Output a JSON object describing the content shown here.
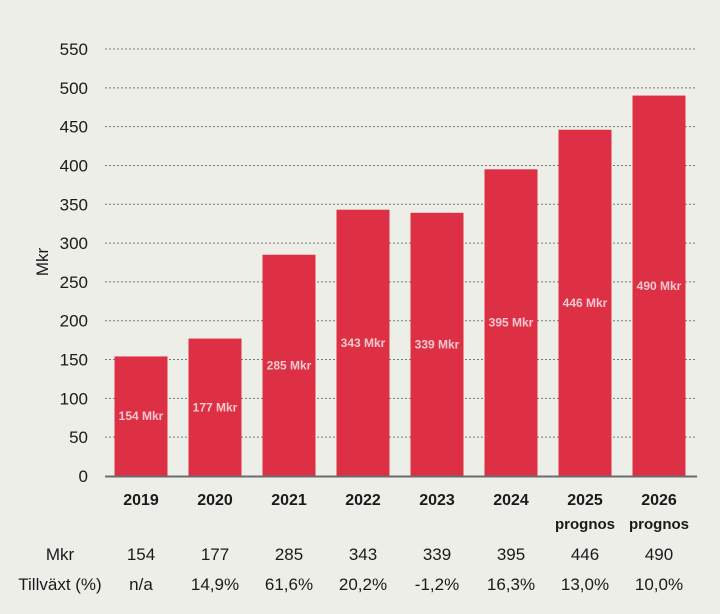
{
  "chart_data": {
    "type": "bar",
    "title": "",
    "xlabel": "",
    "ylabel": "Mkr",
    "ylim": [
      0,
      550
    ],
    "yticks": [
      0,
      50,
      100,
      150,
      200,
      250,
      300,
      350,
      400,
      450,
      500,
      550
    ],
    "grid": true,
    "grid_style": "dotted",
    "categories": [
      "2019",
      "2020",
      "2021",
      "2022",
      "2023",
      "2024",
      "2025",
      "2026"
    ],
    "category_sublabels": [
      "",
      "",
      "",
      "",
      "",
      "",
      "prognos",
      "prognos"
    ],
    "values": [
      154,
      177,
      285,
      343,
      339,
      395,
      446,
      490
    ],
    "data_labels": [
      "154 Mkr",
      "177 Mkr",
      "285 Mkr",
      "343 Mkr",
      "339 Mkr",
      "395 Mkr",
      "446 Mkr",
      "490 Mkr"
    ],
    "bar_color": "#de3045",
    "data_label_color": "#f4c9cf",
    "table": {
      "rows": [
        {
          "label": "Mkr",
          "cells": [
            "154",
            "177",
            "285",
            "343",
            "339",
            "395",
            "446",
            "490"
          ]
        },
        {
          "label": "Tillväxt (%)",
          "cells": [
            "n/a",
            "14,9%",
            "61,6%",
            "20,2%",
            "-1,2%",
            "16,3%",
            "13,0%",
            "10,0%"
          ]
        }
      ]
    }
  }
}
